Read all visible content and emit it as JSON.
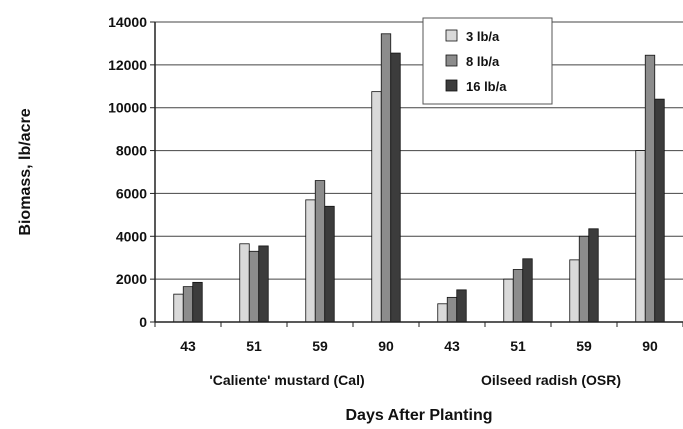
{
  "chart_data": {
    "type": "bar",
    "title": "",
    "xlabel": "Days After Planting",
    "ylabel": "Biomass, lb/acre",
    "ylim": [
      0,
      14000
    ],
    "yticks": [
      0,
      2000,
      4000,
      6000,
      8000,
      10000,
      12000,
      14000
    ],
    "grid": "horizontal",
    "legend_position": "top-right",
    "categories": [
      "43",
      "51",
      "59",
      "90",
      "43",
      "51",
      "59",
      "90"
    ],
    "groups": [
      {
        "label": "'Caliente' mustard (Cal)",
        "categories": [
          "43",
          "51",
          "59",
          "90"
        ]
      },
      {
        "label": "Oilseed radish (OSR)",
        "categories": [
          "43",
          "51",
          "59",
          "90"
        ]
      }
    ],
    "series": [
      {
        "name": "3 lb/a",
        "color": "#d9d9d9",
        "values": [
          1300,
          3650,
          5700,
          10750,
          850,
          2000,
          2900,
          8000
        ]
      },
      {
        "name": "8 lb/a",
        "color": "#8c8c8c",
        "values": [
          1650,
          3300,
          6600,
          13450,
          1150,
          2450,
          4000,
          12450
        ]
      },
      {
        "name": "16 lb/a",
        "color": "#3c3c3c",
        "values": [
          1850,
          3550,
          5400,
          12550,
          1500,
          2950,
          4350,
          10400
        ]
      }
    ]
  }
}
